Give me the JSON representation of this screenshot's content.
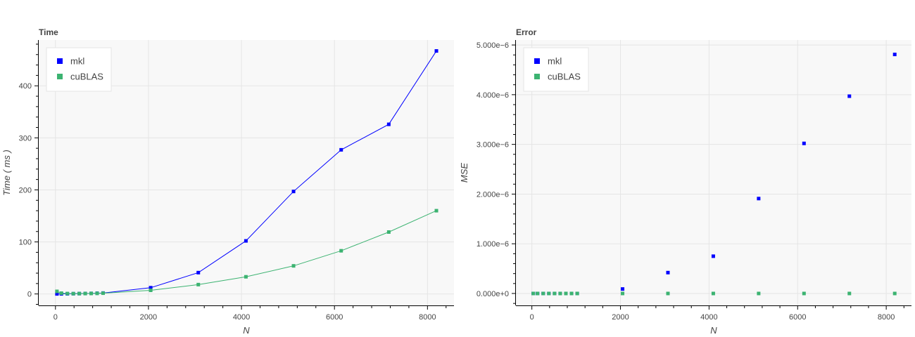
{
  "chart_data": [
    {
      "type": "line",
      "title": "Time",
      "xlabel": "N",
      "ylabel": "Time ( ms )",
      "xlim": [
        -360,
        8570
      ],
      "ylim": [
        -22,
        488
      ],
      "xticks": [
        0,
        2000,
        4000,
        6000,
        8000
      ],
      "xtick_labels": [
        "0",
        "2000",
        "4000",
        "6000",
        "8000"
      ],
      "yticks": [
        0,
        100,
        200,
        300,
        400
      ],
      "ytick_labels": [
        "0",
        "100",
        "200",
        "300",
        "400"
      ],
      "grid": true,
      "legend": "top-left",
      "x": [
        32,
        128,
        256,
        384,
        512,
        640,
        768,
        896,
        1024,
        2048,
        3072,
        4096,
        5120,
        6144,
        7168,
        8192
      ],
      "series": [
        {
          "name": "mkl",
          "color": "#0000ff",
          "marker": "square",
          "line": true,
          "values": [
            0.1,
            0.2,
            0.3,
            0.5,
            0.7,
            0.9,
            1.1,
            1.4,
            1.8,
            12,
            41,
            102,
            197,
            277,
            326,
            467
          ]
        },
        {
          "name": "cuBLAS",
          "color": "#3cb371",
          "marker": "square",
          "line": true,
          "values": [
            5,
            1.5,
            0.8,
            0.6,
            0.7,
            0.8,
            1.0,
            1.2,
            1.5,
            7,
            18,
            33,
            54,
            83,
            119,
            160
          ]
        }
      ]
    },
    {
      "type": "scatter",
      "title": "Error",
      "xlabel": "N",
      "ylabel": "MSE",
      "xlim": [
        -360,
        8570
      ],
      "ylim": [
        -2.4e-07,
        5.1e-06
      ],
      "xticks": [
        0,
        2000,
        4000,
        6000,
        8000
      ],
      "xtick_labels": [
        "0",
        "2000",
        "4000",
        "6000",
        "8000"
      ],
      "yticks": [
        0,
        1e-06,
        2e-06,
        3e-06,
        4e-06,
        5e-06
      ],
      "ytick_labels": [
        "0.000e+0",
        "1.000e−6",
        "2.000e−6",
        "3.000e−6",
        "4.000e−6",
        "5.000e−6"
      ],
      "grid": true,
      "legend": "top-left",
      "x": [
        32,
        128,
        256,
        384,
        512,
        640,
        768,
        896,
        1024,
        2048,
        3072,
        4096,
        5120,
        6144,
        7168,
        8192
      ],
      "series": [
        {
          "name": "mkl",
          "color": "#0000ff",
          "marker": "square",
          "line": false,
          "values": [
            0,
            0,
            0,
            0,
            0,
            0,
            0,
            0,
            0,
            9e-08,
            4.2e-07,
            7.5e-07,
            1.91e-06,
            3.02e-06,
            3.97e-06,
            4.81e-06
          ]
        },
        {
          "name": "cuBLAS",
          "color": "#3cb371",
          "marker": "square",
          "line": false,
          "values": [
            0,
            0,
            0,
            0,
            0,
            0,
            0,
            0,
            0,
            0,
            0,
            0,
            0,
            0,
            0,
            0
          ]
        }
      ]
    }
  ]
}
